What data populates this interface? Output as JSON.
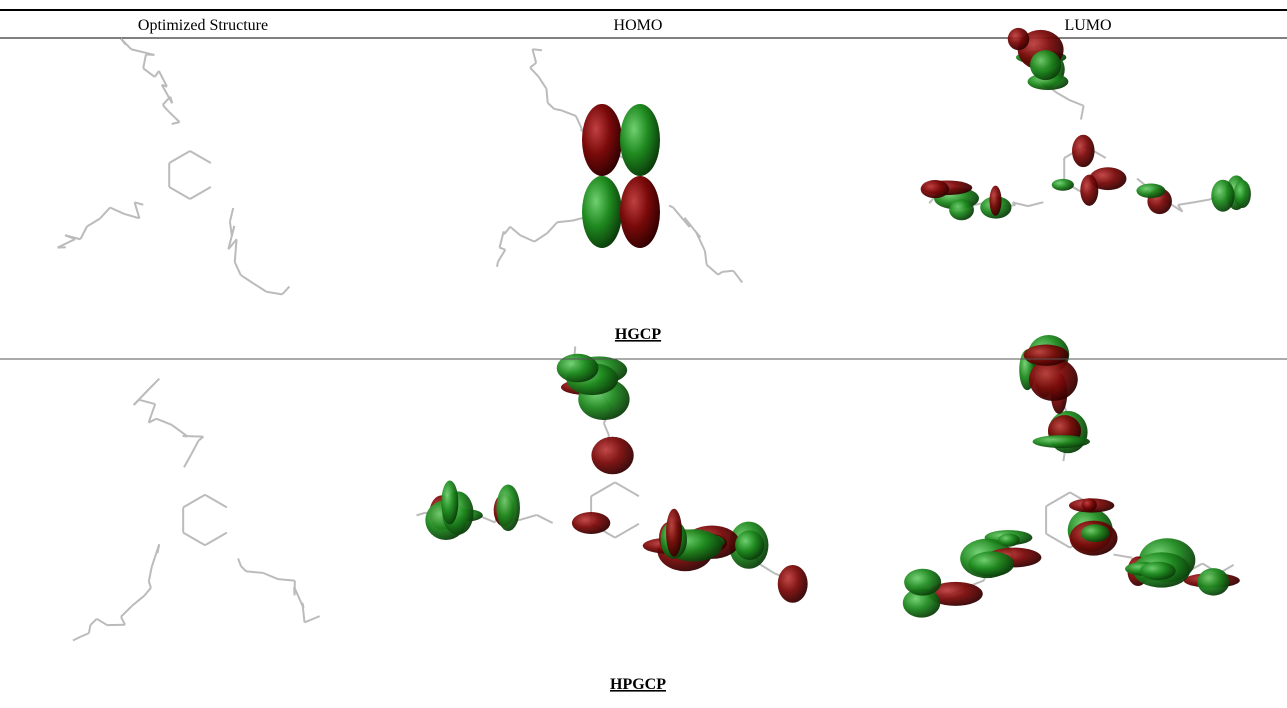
{
  "table": {
    "header": [
      "Optimized Structure",
      "HOMO",
      "LUMO"
    ],
    "rows": [
      {
        "label": "HGCP"
      },
      {
        "label": "HPGCP"
      }
    ]
  }
}
